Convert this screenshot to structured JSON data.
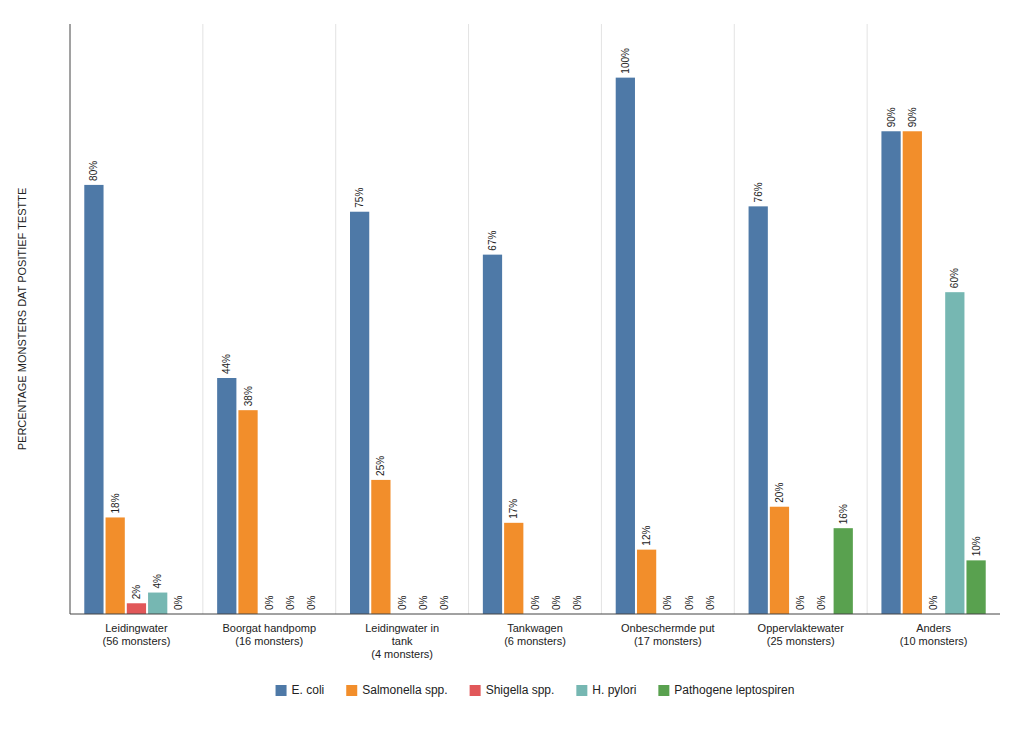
{
  "chart_data": {
    "type": "bar",
    "y_label": "PERCENTAGE MONSTERS DAT POSITIEF TESTTE",
    "categories": [
      "Leidingwater\n(56 monsters)",
      "Boorgat handpomp\n(16 monsters)",
      "Leidingwater in\ntank\n(4 monsters)",
      "Tankwagen\n(6 monsters)",
      "Onbeschermde put\n(17 monsters)",
      "Oppervlaktewater\n(25 monsters)",
      "Anders\n(10 monsters)"
    ],
    "series": [
      {
        "name": "E. coli",
        "color": "#4e79a7",
        "values": [
          80,
          44,
          75,
          67,
          100,
          76,
          90
        ],
        "value_labels": [
          "80%",
          "44%",
          "75%",
          "67%",
          "100%",
          "76%",
          "90%"
        ]
      },
      {
        "name": "Salmonella spp.",
        "color": "#f28e2b",
        "values": [
          18,
          38,
          25,
          17,
          12,
          20,
          90
        ],
        "value_labels": [
          "18%",
          "38%",
          "25%",
          "17%",
          "12%",
          "20%",
          "90%"
        ]
      },
      {
        "name": "Shigella spp.",
        "color": "#e15759",
        "values": [
          2,
          0,
          0,
          0,
          0,
          0,
          0
        ],
        "value_labels": [
          "2%",
          "0%",
          "0%",
          "0%",
          "0%",
          "0%",
          "0%"
        ]
      },
      {
        "name": "H. pylori",
        "color": "#76b7b2",
        "values": [
          4,
          0,
          0,
          0,
          0,
          0,
          60
        ],
        "value_labels": [
          "4%",
          "0%",
          "0%",
          "0%",
          "0%",
          "0%",
          "60%"
        ]
      },
      {
        "name": "Pathogene leptospiren",
        "color": "#59a14f",
        "values": [
          0,
          0,
          0,
          0,
          0,
          16,
          10
        ],
        "value_labels": [
          "0%",
          "0%",
          "0%",
          "0%",
          "0%",
          "16%",
          "10%"
        ]
      }
    ],
    "ylim": [
      0,
      110
    ],
    "grid": false,
    "legend": "bottom",
    "data_labels": true,
    "tick_labels": "x"
  }
}
